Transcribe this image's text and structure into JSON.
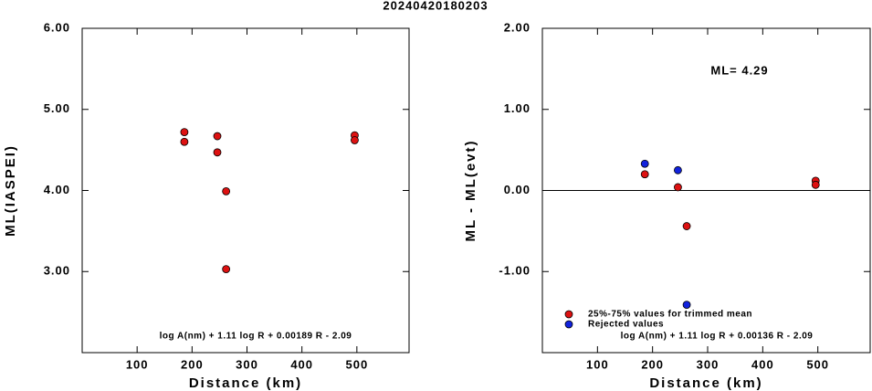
{
  "title": "20240420180203",
  "chart_data": [
    {
      "type": "scatter",
      "xlabel": "Distance (km)",
      "ylabel": "ML(IASPEI)",
      "annotations": [
        "log A(nm) + 1.11 log R + 0.00189 R - 2.09"
      ],
      "x": [
        186,
        186,
        246,
        246,
        262,
        262,
        496,
        496
      ],
      "values": [
        4.72,
        4.6,
        4.67,
        4.47,
        3.99,
        3.03,
        4.68,
        4.62
      ],
      "color": "#dd1111",
      "xlim": [
        0,
        595
      ],
      "xticks": [
        100,
        200,
        300,
        400,
        500
      ],
      "ylim": [
        2,
        6
      ],
      "yticks": [
        {
          "value": 3,
          "label": "3.00"
        },
        {
          "value": 4,
          "label": "4.00"
        },
        {
          "value": 5,
          "label": "5.00"
        },
        {
          "value": 6,
          "label": "6.00"
        }
      ]
    },
    {
      "type": "scatter",
      "xlabel": "Distance (km)",
      "ylabel": "ML - ML(evt)",
      "annotations": [
        "ML= 4.29",
        "log A(nm) + 1.11 log R + 0.00136 R - 2.09"
      ],
      "hline": 0,
      "series": [
        {
          "name": "25%-75% values for trimmed mean",
          "color": "#dd1111",
          "x": [
            186,
            246,
            262,
            496,
            496
          ],
          "values": [
            0.2,
            0.04,
            -0.44,
            0.12,
            0.07
          ]
        },
        {
          "name": "Rejected values",
          "color": "#1122dd",
          "x": [
            186,
            246,
            262
          ],
          "values": [
            0.33,
            0.25,
            -1.41
          ]
        }
      ],
      "xlim": [
        0,
        595
      ],
      "xticks": [
        100,
        200,
        300,
        400,
        500
      ],
      "ylim": [
        -2,
        2
      ],
      "yticks": [
        {
          "value": -1,
          "label": "-1.00"
        },
        {
          "value": 0,
          "label": "0.00"
        },
        {
          "value": 1,
          "label": "1.00"
        },
        {
          "value": 2,
          "label": "2.00"
        }
      ]
    }
  ]
}
